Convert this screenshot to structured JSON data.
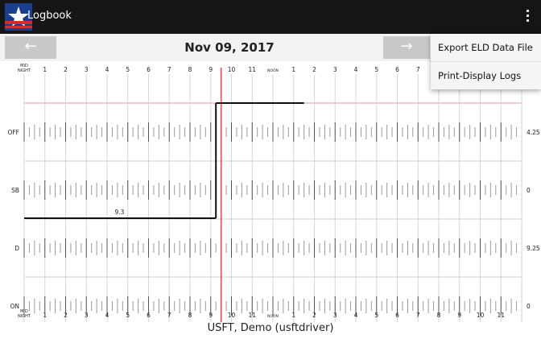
{
  "appbar": {
    "title": "Logbook"
  },
  "date": {
    "label": "Nov 09, 2017",
    "prev_icon": "←",
    "next_icon": "→"
  },
  "menu": {
    "items": [
      "Export ELD Data File",
      "Print-Display Logs"
    ]
  },
  "log": {
    "hour_labels": [
      "MID NIGHT",
      "1",
      "2",
      "3",
      "4",
      "5",
      "6",
      "7",
      "8",
      "9",
      "10",
      "11",
      "NOON",
      "1",
      "2",
      "3",
      "4",
      "5",
      "6",
      "7",
      "8",
      "9",
      "10",
      "11"
    ],
    "rows": [
      {
        "label": "OFF",
        "total": "4.25"
      },
      {
        "label": "SB",
        "total": "0"
      },
      {
        "label": "D",
        "total": "9.25"
      },
      {
        "label": "ON",
        "total": "0"
      }
    ],
    "duty_segments": [
      {
        "status": "D",
        "start_hour": 0,
        "end_hour": 9.25
      },
      {
        "status": "OFF",
        "start_hour": 9.25,
        "end_hour": 13.5
      }
    ],
    "segment_annotation": {
      "text": "9.3",
      "status": "D",
      "hour": 4.6
    },
    "current_time_hour": 9.5
  },
  "driver": {
    "name": "USFT, Demo (usftdriver)"
  },
  "colors": {
    "appbar": "#151515",
    "current_time": "#e8474e",
    "graph_line": "#111111"
  }
}
